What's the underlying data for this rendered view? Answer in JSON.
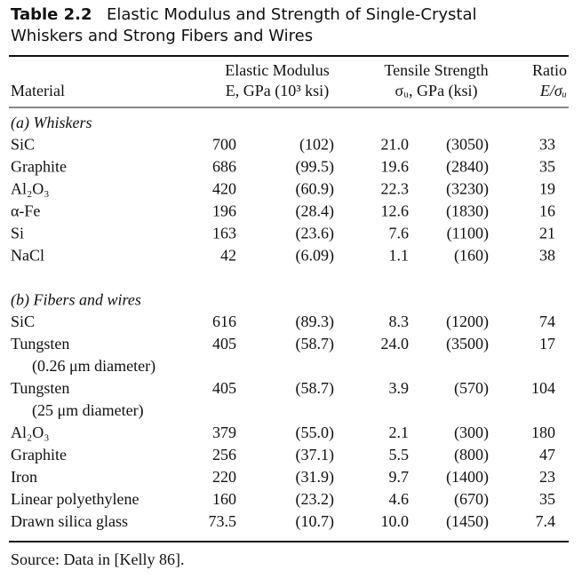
{
  "title": {
    "label": "Table 2.2",
    "lines": [
      "Elastic Modulus and Strength of Single-Crystal",
      "Whiskers and Strong Fibers and Wires"
    ]
  },
  "header": {
    "material": "Material",
    "modulus": [
      "Elastic Modulus",
      "E, GPa (10³ ksi)"
    ],
    "strength": [
      "Tensile Strength",
      "σᵤ, GPa (ksi)"
    ],
    "ratio": [
      "Ratio",
      "E/σᵤ"
    ]
  },
  "sections": [
    {
      "heading": "(a) Whiskers",
      "rows": [
        {
          "cells": [
            "SiC",
            "700",
            "(102)",
            "21.0",
            "(3050)",
            "33"
          ]
        },
        {
          "cells": [
            "Graphite",
            "686",
            "(99.5)",
            "19.6",
            "(2840)",
            "35"
          ]
        },
        {
          "cells": [
            "Al₂O₃",
            "420",
            "(60.9)",
            "22.3",
            "(3230)",
            "19"
          ]
        },
        {
          "cells": [
            "α-Fe",
            "196",
            "(28.4)",
            "12.6",
            "(1830)",
            "16"
          ]
        },
        {
          "cells": [
            "Si",
            "163",
            "(23.6)",
            "7.6",
            "(1100)",
            "21"
          ]
        },
        {
          "cells": [
            "NaCl",
            "42",
            "(6.09)",
            "1.1",
            "(160)",
            "38"
          ]
        }
      ]
    },
    {
      "heading": "(b) Fibers and wires",
      "rows": [
        {
          "cells": [
            "SiC",
            "616",
            "(89.3)",
            "8.3",
            "(1200)",
            "74"
          ]
        },
        {
          "cells": [
            "Tungsten",
            "405",
            "(58.7)",
            "24.0",
            "(3500)",
            "17"
          ],
          "note": "(0.26 μm diameter)"
        },
        {
          "cells": [
            "Tungsten",
            "405",
            "(58.7)",
            "3.9",
            "(570)",
            "104"
          ],
          "note": "(25 μm diameter)"
        },
        {
          "cells": [
            "Al₂O₃",
            "379",
            "(55.0)",
            "2.1",
            "(300)",
            "180"
          ]
        },
        {
          "cells": [
            "Graphite",
            "256",
            "(37.1)",
            "5.5",
            "(800)",
            "47"
          ]
        },
        {
          "cells": [
            "Iron",
            "220",
            "(31.9)",
            "9.7",
            "(1400)",
            "23"
          ]
        },
        {
          "cells": [
            "Linear polyethylene",
            "160",
            "(23.2)",
            "4.6",
            "(670)",
            "35"
          ]
        },
        {
          "cells": [
            "Drawn silica glass",
            "73.5",
            "(10.7)",
            "10.0",
            "(1450)",
            "7.4"
          ]
        }
      ]
    }
  ],
  "source": "Source: Data in [Kelly 86]."
}
